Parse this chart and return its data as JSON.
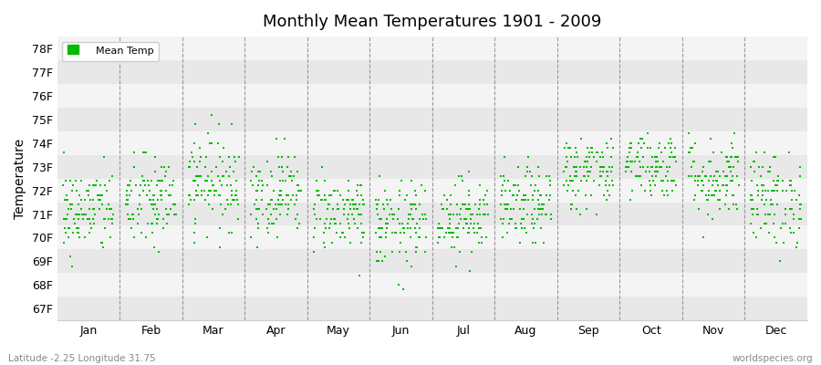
{
  "title": "Monthly Mean Temperatures 1901 - 2009",
  "ylabel": "Temperature",
  "xlabel_labels": [
    "Jan",
    "Feb",
    "Mar",
    "Apr",
    "May",
    "Jun",
    "Jul",
    "Aug",
    "Sep",
    "Oct",
    "Nov",
    "Dec"
  ],
  "ytick_labels": [
    "67F",
    "68F",
    "69F",
    "70F",
    "71F",
    "72F",
    "73F",
    "74F",
    "75F",
    "76F",
    "77F",
    "78F"
  ],
  "ytick_values": [
    67,
    68,
    69,
    70,
    71,
    72,
    73,
    74,
    75,
    76,
    77,
    78
  ],
  "ylim": [
    66.5,
    78.5
  ],
  "dot_color": "#00bb00",
  "background_color": "#ffffff",
  "band_color_dark": "#e8e8e8",
  "band_color_light": "#f4f4f4",
  "footer_left": "Latitude -2.25 Longitude 31.75",
  "footer_right": "worldspecies.org",
  "legend_label": "Mean Temp",
  "n_years": 109,
  "monthly_means": [
    71.1,
    71.5,
    72.4,
    71.9,
    71.1,
    70.5,
    70.9,
    71.3,
    72.8,
    73.1,
    72.5,
    71.6
  ],
  "monthly_stds": [
    0.9,
    1.0,
    1.0,
    0.9,
    0.8,
    0.9,
    0.8,
    0.8,
    0.8,
    0.7,
    0.9,
    1.0
  ]
}
